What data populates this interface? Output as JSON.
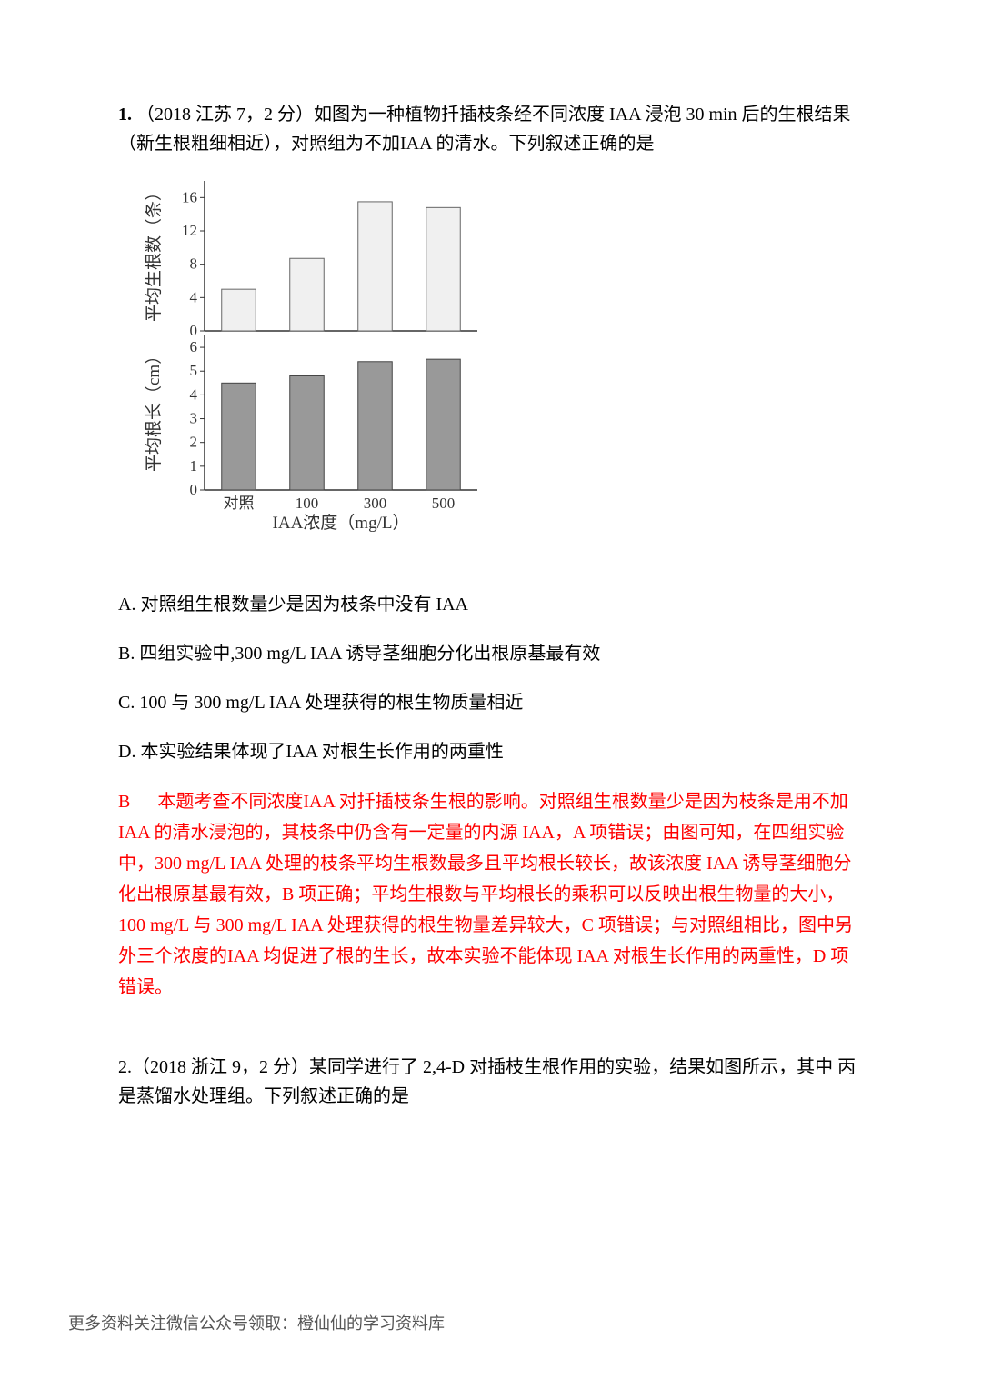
{
  "q1": {
    "number": "1.",
    "header": "（2018 江苏 7，2 分）如图为一种植物扦插枝条经不同浓度 IAA 浸泡 30 min 后的生根结果 （新生根粗细相近），对照组为不加IAA 的清水。下列叙述正确的是",
    "chart": {
      "top": {
        "ylabel": "平均生根数（条）",
        "ylim": [
          0,
          18
        ],
        "yticks": [
          0,
          4,
          8,
          12,
          16
        ],
        "values": [
          5.0,
          8.7,
          15.5,
          14.8
        ],
        "fill": "#f0f0f0",
        "stroke": "#666666"
      },
      "bottom": {
        "ylabel": "平均根长（cm）",
        "ylim": [
          0,
          6.5
        ],
        "yticks": [
          0,
          1,
          2,
          3,
          4,
          5,
          6
        ],
        "values": [
          4.5,
          4.8,
          5.4,
          5.5
        ],
        "fill": "#999999",
        "stroke": "#444444"
      },
      "xlabels": [
        "对照",
        "100",
        "300",
        "500"
      ],
      "xtitle": "IAA浓度（mg/L）",
      "bar_width": 0.5,
      "font_size": 17,
      "axis_color": "#333333"
    },
    "options": {
      "a": "A. 对照组生根数量少是因为枝条中没有 IAA",
      "b": "B. 四组实验中,300 mg/L IAA 诱导茎细胞分化出根原基最有效",
      "c": "C. 100 与 300 mg/L IAA 处理获得的根生物质量相近",
      "d": "D. 本实验结果体现了IAA 对根生长作用的两重性"
    },
    "answer_label": "B",
    "answer_text": "本题考查不同浓度IAA 对扦插枝条生根的影响。对照组生根数量少是因为枝条是用不加 IAA 的清水浸泡的，其枝条中仍含有一定量的内源 IAA，A 项错误；由图可知，在四组实验 中，300 mg/L IAA 处理的枝条平均生根数最多且平均根长较长，故该浓度 IAA 诱导茎细胞分化出根原基最有效，B 项正确；平均生根数与平均根长的乘积可以反映出根生物量的大小， 100 mg/L 与 300 mg/L IAA 处理获得的根生物量差异较大，C 项错误；与对照组相比，图中另 外三个浓度的IAA 均促进了根的生长，故本实验不能体现 IAA 对根生长作用的两重性，D 项错误。"
  },
  "q2": {
    "text": "2.（2018 浙江 9，2 分）某同学进行了 2,4-D 对插枝生根作用的实验，结果如图所示，其中 丙是蒸馏水处理组。下列叙述正确的是"
  },
  "footer": "更多资料关注微信公众号领取：橙仙仙的学习资料库"
}
